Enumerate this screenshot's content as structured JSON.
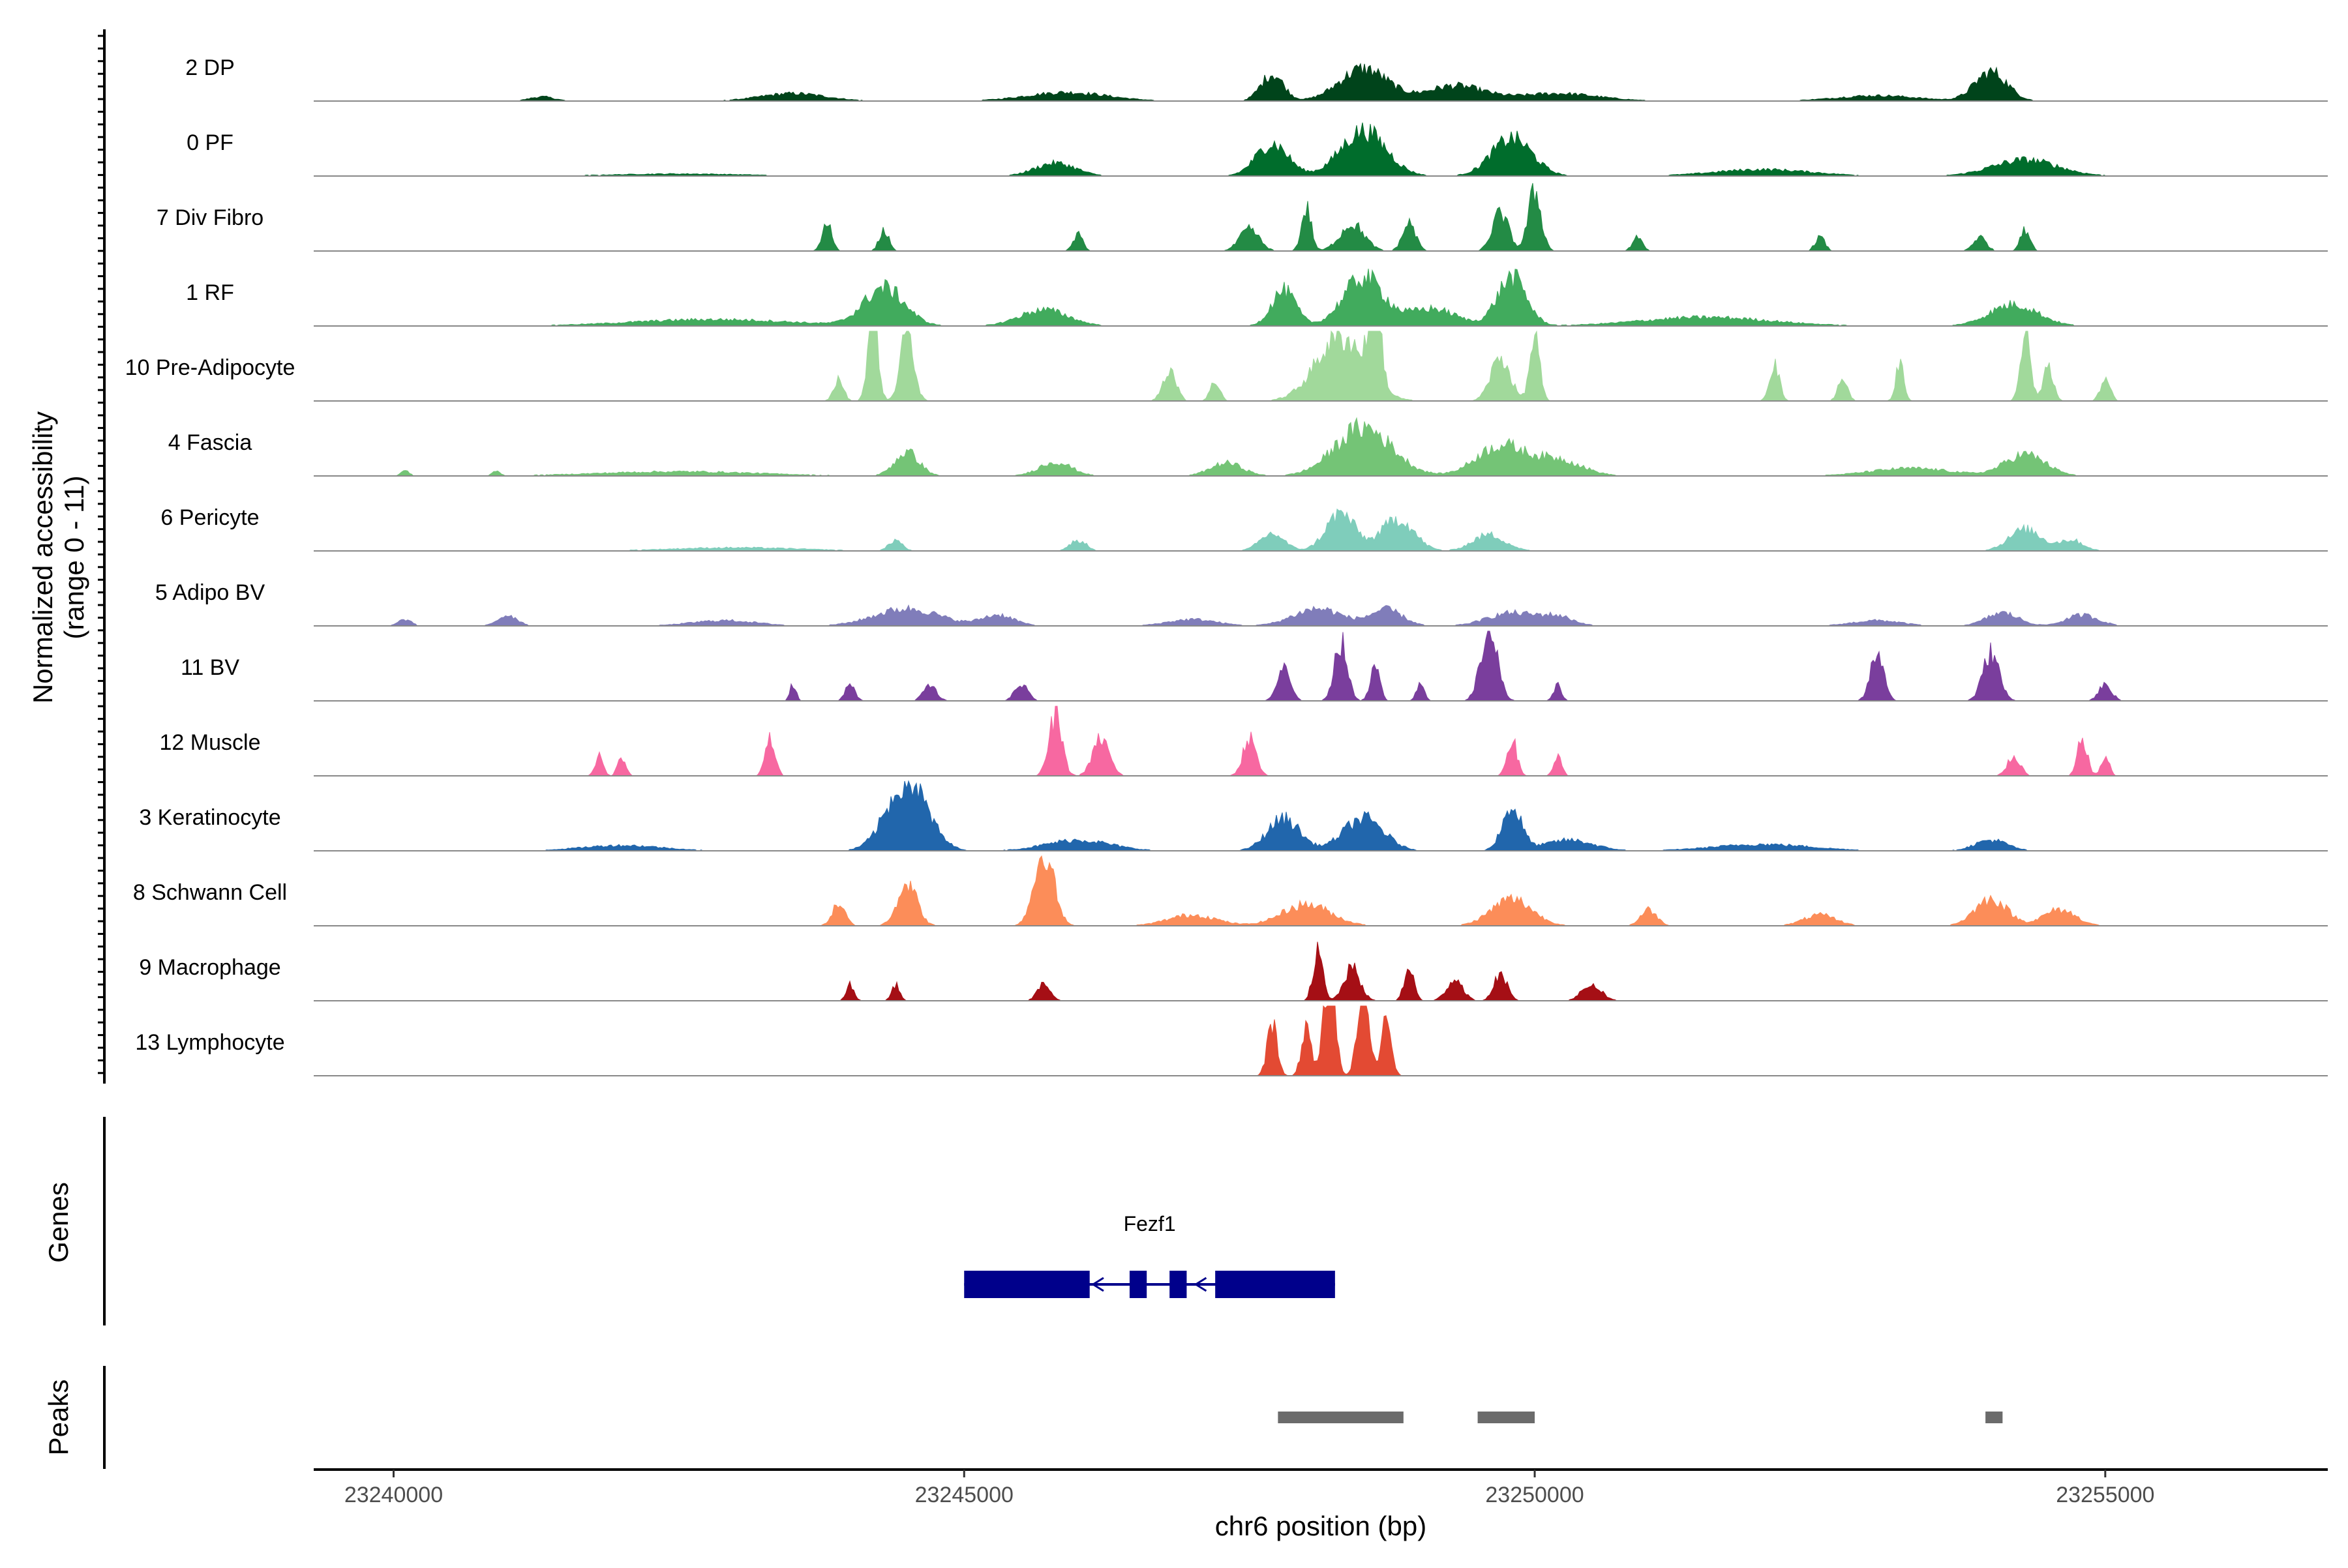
{
  "chart_data": {
    "type": "area",
    "title": "",
    "ylabel_line1": "Normalized accessibility",
    "ylabel_line2": "(range 0 - 11)",
    "xlabel": "chr6 position (bp)",
    "xlim": [
      23239300,
      23256950
    ],
    "xticks": [
      23240000,
      23245000,
      23250000,
      23255000
    ],
    "xtick_labels": [
      "23240000",
      "23245000",
      "23250000",
      "23255000"
    ],
    "ylim": [
      0,
      11
    ],
    "tracks": [
      {
        "name": "2 DP",
        "color": "#00441b",
        "peaks": [
          [
            23241300,
            0.4,
            150
          ],
          [
            23243500,
            0.7,
            400
          ],
          [
            23245900,
            0.8,
            500
          ],
          [
            23247700,
            2.5,
            140
          ],
          [
            23248500,
            3.0,
            300
          ],
          [
            23249300,
            1.4,
            350
          ],
          [
            23250200,
            0.7,
            500
          ],
          [
            23254000,
            2.7,
            200
          ],
          [
            23253000,
            0.5,
            500
          ]
        ]
      },
      {
        "name": "0 PF",
        "color": "#006d2c",
        "peaks": [
          [
            23245800,
            1.2,
            250
          ],
          [
            23247700,
            3.0,
            200
          ],
          [
            23248500,
            4.2,
            280
          ],
          [
            23249800,
            3.5,
            250
          ],
          [
            23252000,
            0.6,
            600
          ],
          [
            23254300,
            1.5,
            400
          ],
          [
            23242500,
            0.2,
            800
          ]
        ]
      },
      {
        "name": "7 Div Fibro",
        "color": "#238b45",
        "peaks": [
          [
            23243800,
            2.5,
            60
          ],
          [
            23244300,
            2.0,
            60
          ],
          [
            23246000,
            1.5,
            60
          ],
          [
            23247500,
            2.0,
            120
          ],
          [
            23248000,
            4.0,
            60
          ],
          [
            23248400,
            2.5,
            150
          ],
          [
            23248900,
            2.6,
            80
          ],
          [
            23249700,
            3.5,
            100
          ],
          [
            23250000,
            5.5,
            80
          ],
          [
            23250900,
            1.3,
            60
          ],
          [
            23252500,
            1.3,
            60
          ],
          [
            23253900,
            1.3,
            80
          ],
          [
            23254300,
            2.0,
            60
          ]
        ]
      },
      {
        "name": "1 RF",
        "color": "#41ab5d",
        "peaks": [
          [
            23244300,
            3.5,
            250
          ],
          [
            23245700,
            1.5,
            300
          ],
          [
            23247800,
            3.3,
            150
          ],
          [
            23248500,
            4.5,
            250
          ],
          [
            23249800,
            4.5,
            180
          ],
          [
            23249100,
            1.6,
            300
          ],
          [
            23254200,
            2.0,
            300
          ],
          [
            23242800,
            0.6,
            1000
          ],
          [
            23251500,
            0.8,
            800
          ]
        ]
      },
      {
        "name": "10 Pre-Adipocyte",
        "color": "#a1d99b",
        "peaks": [
          [
            23244200,
            9.0,
            60
          ],
          [
            23244500,
            7.0,
            80
          ],
          [
            23243900,
            2.0,
            60
          ],
          [
            23246800,
            3.0,
            80
          ],
          [
            23247200,
            1.8,
            60
          ],
          [
            23248300,
            6.0,
            300
          ],
          [
            23248600,
            9.0,
            70
          ],
          [
            23249700,
            4.0,
            120
          ],
          [
            23250000,
            6.0,
            60
          ],
          [
            23252100,
            3.5,
            60
          ],
          [
            23252700,
            2.0,
            60
          ],
          [
            23253200,
            3.5,
            50
          ],
          [
            23254300,
            7.0,
            60
          ],
          [
            23254500,
            3.5,
            60
          ],
          [
            23255000,
            2.0,
            60
          ]
        ]
      },
      {
        "name": "4 Fascia",
        "color": "#74c476",
        "peaks": [
          [
            23244500,
            2.2,
            150
          ],
          [
            23245800,
            1.3,
            200
          ],
          [
            23247300,
            1.2,
            200
          ],
          [
            23248500,
            4.5,
            350
          ],
          [
            23249700,
            2.8,
            300
          ],
          [
            23250200,
            1.5,
            300
          ],
          [
            23254300,
            2.0,
            250
          ],
          [
            23253300,
            0.7,
            500
          ],
          [
            23242500,
            0.4,
            1000
          ],
          [
            23240100,
            0.5,
            50
          ],
          [
            23240900,
            0.4,
            50
          ]
        ]
      },
      {
        "name": "6 Pericyte",
        "color": "#7fcdbb",
        "peaks": [
          [
            23247700,
            1.6,
            150
          ],
          [
            23248300,
            3.5,
            180
          ],
          [
            23248800,
            3.0,
            200
          ],
          [
            23249600,
            1.5,
            200
          ],
          [
            23244400,
            1.0,
            80
          ],
          [
            23246000,
            1.0,
            100
          ],
          [
            23254300,
            2.0,
            200
          ],
          [
            23254700,
            1.0,
            150
          ],
          [
            23243000,
            0.3,
            800
          ]
        ]
      },
      {
        "name": "5 Adipo BV",
        "color": "#807dba",
        "peaks": [
          [
            23240100,
            0.6,
            80
          ],
          [
            23241000,
            1.0,
            120
          ],
          [
            23244500,
            1.6,
            400
          ],
          [
            23245300,
            1.0,
            200
          ],
          [
            23248100,
            1.6,
            300
          ],
          [
            23248700,
            1.5,
            200
          ],
          [
            23249800,
            1.2,
            300
          ],
          [
            23250200,
            0.8,
            200
          ],
          [
            23254100,
            1.2,
            200
          ],
          [
            23254800,
            1.0,
            200
          ],
          [
            23242900,
            0.5,
            400
          ],
          [
            23247000,
            0.6,
            300
          ],
          [
            23253000,
            0.5,
            300
          ]
        ]
      },
      {
        "name": "11 BV",
        "color": "#7a3e9d",
        "peaks": [
          [
            23247800,
            3.0,
            80
          ],
          [
            23248300,
            5.5,
            80
          ],
          [
            23248600,
            3.0,
            60
          ],
          [
            23249600,
            7.0,
            100
          ],
          [
            23250200,
            1.5,
            50
          ],
          [
            23253000,
            4.5,
            80
          ],
          [
            23254000,
            4.5,
            100
          ],
          [
            23244000,
            1.5,
            60
          ],
          [
            23244700,
            1.5,
            80
          ],
          [
            23245500,
            1.5,
            80
          ],
          [
            23249000,
            1.5,
            50
          ],
          [
            23255000,
            1.5,
            80
          ],
          [
            23243500,
            1.5,
            40
          ]
        ]
      },
      {
        "name": "12 Muscle",
        "color": "#f768a1",
        "peaks": [
          [
            23245800,
            5.5,
            80
          ],
          [
            23246200,
            3.5,
            100
          ],
          [
            23247500,
            3.5,
            80
          ],
          [
            23249800,
            3.5,
            60
          ],
          [
            23250200,
            1.8,
            50
          ],
          [
            23243300,
            3.5,
            60
          ],
          [
            23241800,
            1.8,
            50
          ],
          [
            23242000,
            1.8,
            50
          ],
          [
            23254200,
            1.8,
            80
          ],
          [
            23254800,
            3.5,
            60
          ],
          [
            23255000,
            1.8,
            50
          ]
        ]
      },
      {
        "name": "3 Keratinocyte",
        "color": "#2166ac",
        "peaks": [
          [
            23244500,
            6.5,
            250
          ],
          [
            23247800,
            3.0,
            200
          ],
          [
            23248500,
            3.0,
            250
          ],
          [
            23249800,
            4.0,
            120
          ],
          [
            23250300,
            1.0,
            300
          ],
          [
            23254000,
            1.0,
            200
          ],
          [
            23242000,
            0.5,
            500
          ],
          [
            23246000,
            1.0,
            400
          ],
          [
            23252000,
            0.6,
            600
          ]
        ]
      },
      {
        "name": "8 Schwann Cell",
        "color": "#fc8d59",
        "peaks": [
          [
            23244500,
            4.0,
            120
          ],
          [
            23243900,
            2.0,
            80
          ],
          [
            23245700,
            7.0,
            120
          ],
          [
            23248000,
            2.0,
            300
          ],
          [
            23249800,
            2.5,
            250
          ],
          [
            23254000,
            2.5,
            200
          ],
          [
            23254600,
            1.5,
            200
          ],
          [
            23247000,
            1.0,
            300
          ],
          [
            23251000,
            1.5,
            100
          ],
          [
            23252500,
            1.0,
            200
          ]
        ]
      },
      {
        "name": "9 Macrophage",
        "color": "#a50f15",
        "peaks": [
          [
            23248100,
            4.5,
            60
          ],
          [
            23248400,
            3.0,
            100
          ],
          [
            23248900,
            3.0,
            60
          ],
          [
            23249300,
            2.0,
            100
          ],
          [
            23249700,
            2.5,
            80
          ],
          [
            23250500,
            1.5,
            120
          ],
          [
            23244000,
            1.5,
            50
          ],
          [
            23244400,
            1.5,
            50
          ],
          [
            23245700,
            1.5,
            80
          ]
        ]
      },
      {
        "name": "13 Lymphocyte",
        "color": "#e34a33",
        "peaks": [
          [
            23247700,
            5.0,
            60
          ],
          [
            23248000,
            4.5,
            60
          ],
          [
            23248200,
            10.0,
            70
          ],
          [
            23248500,
            9.0,
            70
          ],
          [
            23248700,
            5.0,
            60
          ]
        ]
      }
    ],
    "genes_label": "Genes",
    "gene": {
      "name": "Fezf1",
      "strand": "-",
      "color": "#00008b",
      "start": 23245000,
      "end": 23248250,
      "exons": [
        [
          23245000,
          23246100
        ],
        [
          23246450,
          23246600
        ],
        [
          23246800,
          23246950
        ],
        [
          23247200,
          23248250
        ]
      ]
    },
    "peaks_label": "Peaks",
    "peak_regions": [
      [
        23247750,
        23248850
      ],
      [
        23249500,
        23250000
      ],
      [
        23253950,
        23254100
      ]
    ],
    "peak_color": "#6b6b6b"
  }
}
